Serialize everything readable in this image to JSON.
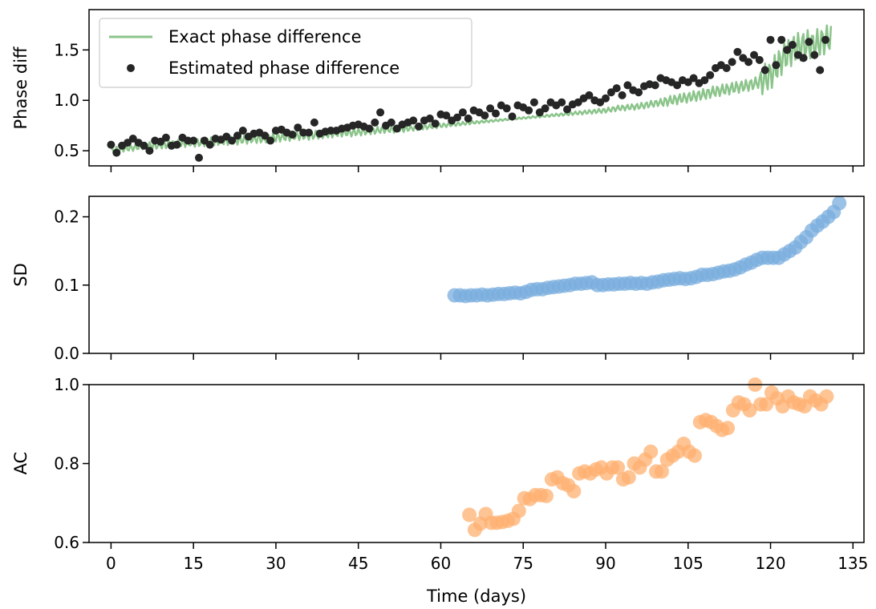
{
  "figure": {
    "background": "#ffffff"
  },
  "chart_data": [
    {
      "type": "line",
      "id": "phase",
      "ylabel": "Phase diff",
      "ylim": [
        0.35,
        1.9
      ],
      "yticks": [
        0.5,
        1.0,
        1.5
      ],
      "ytick_labels": [
        "0.5",
        "1.0",
        "1.5"
      ],
      "xlim": [
        -4,
        137
      ],
      "legend": {
        "placement": "top-left",
        "entries": [
          "Exact phase difference",
          "Estimated phase difference"
        ]
      },
      "series": [
        {
          "name": "Exact phase difference",
          "kind": "line",
          "color": "#8bc48a",
          "x": [
            0,
            2,
            4,
            6,
            8,
            10,
            12,
            14,
            16,
            18,
            20,
            22,
            24,
            26,
            28,
            30,
            32,
            34,
            36,
            38,
            40,
            42,
            44,
            46,
            48,
            50,
            52,
            54,
            56,
            58,
            60,
            62,
            64,
            66,
            68,
            70,
            72,
            74,
            76,
            78,
            80,
            82,
            84,
            86,
            88,
            90,
            92,
            94,
            96,
            98,
            100,
            102,
            104,
            106,
            108,
            110,
            112,
            114,
            116,
            118,
            120,
            122,
            124,
            126,
            128,
            130,
            131
          ],
          "y": [
            0.5,
            0.52,
            0.53,
            0.55,
            0.55,
            0.56,
            0.57,
            0.58,
            0.58,
            0.59,
            0.6,
            0.6,
            0.61,
            0.62,
            0.62,
            0.63,
            0.64,
            0.65,
            0.65,
            0.66,
            0.67,
            0.68,
            0.68,
            0.69,
            0.7,
            0.71,
            0.71,
            0.72,
            0.73,
            0.74,
            0.75,
            0.76,
            0.77,
            0.78,
            0.79,
            0.8,
            0.81,
            0.82,
            0.83,
            0.84,
            0.85,
            0.86,
            0.87,
            0.88,
            0.89,
            0.9,
            0.92,
            0.93,
            0.94,
            0.96,
            0.98,
            1.0,
            1.02,
            1.04,
            1.06,
            1.09,
            1.11,
            1.13,
            1.15,
            1.18,
            1.25,
            1.4,
            1.5,
            1.55,
            1.55,
            1.6,
            1.62
          ]
        },
        {
          "name": "Estimated phase difference",
          "kind": "scatter",
          "color": "#262626",
          "x": [
            0,
            1,
            2,
            3,
            4,
            5,
            6,
            7,
            8,
            9,
            10,
            11,
            12,
            13,
            14,
            15,
            16,
            17,
            18,
            19,
            20,
            21,
            22,
            23,
            24,
            25,
            26,
            27,
            28,
            29,
            30,
            31,
            32,
            33,
            34,
            35,
            36,
            37,
            38,
            39,
            40,
            41,
            42,
            43,
            44,
            45,
            46,
            47,
            48,
            49,
            50,
            51,
            52,
            53,
            54,
            55,
            56,
            57,
            58,
            59,
            60,
            61,
            62,
            63,
            64,
            65,
            66,
            67,
            68,
            69,
            70,
            71,
            72,
            73,
            74,
            75,
            76,
            77,
            78,
            79,
            80,
            81,
            82,
            83,
            84,
            85,
            86,
            87,
            88,
            89,
            90,
            91,
            92,
            93,
            94,
            95,
            96,
            97,
            98,
            99,
            100,
            101,
            102,
            103,
            104,
            105,
            106,
            107,
            108,
            109,
            110,
            111,
            112,
            113,
            114,
            115,
            116,
            117,
            118,
            119,
            120,
            121,
            122,
            123,
            124,
            125,
            126,
            127,
            128,
            129,
            130
          ],
          "y": [
            0.56,
            0.48,
            0.55,
            0.58,
            0.62,
            0.58,
            0.55,
            0.5,
            0.6,
            0.59,
            0.63,
            0.55,
            0.56,
            0.63,
            0.6,
            0.6,
            0.43,
            0.6,
            0.56,
            0.62,
            0.61,
            0.64,
            0.6,
            0.65,
            0.7,
            0.64,
            0.67,
            0.68,
            0.65,
            0.6,
            0.7,
            0.71,
            0.68,
            0.66,
            0.73,
            0.68,
            0.68,
            0.78,
            0.67,
            0.69,
            0.7,
            0.7,
            0.72,
            0.73,
            0.75,
            0.76,
            0.74,
            0.72,
            0.78,
            0.88,
            0.75,
            0.78,
            0.72,
            0.76,
            0.78,
            0.8,
            0.74,
            0.8,
            0.82,
            0.77,
            0.86,
            0.85,
            0.8,
            0.83,
            0.88,
            0.82,
            0.9,
            0.88,
            0.85,
            0.92,
            0.87,
            0.95,
            0.92,
            0.84,
            0.95,
            0.93,
            0.9,
            0.98,
            0.88,
            0.92,
            0.98,
            0.95,
            0.98,
            0.91,
            0.96,
            0.98,
            1.02,
            1.05,
            1.0,
            0.98,
            1.02,
            1.08,
            1.12,
            1.05,
            1.15,
            1.1,
            1.08,
            1.14,
            1.16,
            1.15,
            1.22,
            1.2,
            1.18,
            1.15,
            1.2,
            1.18,
            1.22,
            1.17,
            1.2,
            1.25,
            1.32,
            1.35,
            1.32,
            1.38,
            1.48,
            1.42,
            1.38,
            1.45,
            1.4,
            1.3,
            1.6,
            1.35,
            1.6,
            1.5,
            1.55,
            1.45,
            1.42,
            1.58,
            1.45,
            1.3,
            1.6
          ]
        }
      ]
    },
    {
      "type": "scatter",
      "id": "sd",
      "ylabel": "SD",
      "ylim": [
        0.0,
        0.23
      ],
      "yticks": [
        0.0,
        0.1,
        0.2
      ],
      "ytick_labels": [
        "0.0",
        "0.1",
        "0.2"
      ],
      "xlim": [
        -4,
        137
      ],
      "series": [
        {
          "kind": "scatter",
          "color": "#7aaede",
          "x": [
            62.5,
            63.5,
            64.5,
            65.5,
            66.5,
            67.5,
            68.5,
            69.5,
            70.5,
            71.5,
            72.5,
            73.5,
            74.5,
            75.5,
            76.5,
            77.5,
            78.5,
            79.5,
            80.5,
            81.5,
            82.5,
            83.5,
            84.5,
            85.5,
            86.5,
            87.5,
            88.5,
            89.5,
            90.5,
            91.5,
            92.5,
            93.5,
            94.5,
            95.5,
            96.5,
            97.5,
            98.5,
            99.5,
            100.5,
            101.5,
            102.5,
            103.5,
            104.5,
            105.5,
            106.5,
            107.5,
            108.5,
            109.5,
            110.5,
            111.5,
            112.5,
            113.5,
            114.5,
            115.5,
            116.5,
            117.5,
            118.5,
            119.5,
            120.5,
            121.5,
            122.5,
            123.5,
            124.5,
            125.5,
            126.5,
            127.5,
            128.5,
            129.5,
            130.5,
            131.5,
            132.5
          ],
          "y": [
            0.085,
            0.085,
            0.084,
            0.085,
            0.085,
            0.086,
            0.085,
            0.086,
            0.087,
            0.087,
            0.088,
            0.089,
            0.088,
            0.09,
            0.093,
            0.094,
            0.094,
            0.096,
            0.097,
            0.098,
            0.099,
            0.1,
            0.102,
            0.102,
            0.103,
            0.104,
            0.1,
            0.1,
            0.101,
            0.101,
            0.102,
            0.102,
            0.103,
            0.102,
            0.103,
            0.102,
            0.104,
            0.105,
            0.107,
            0.108,
            0.109,
            0.11,
            0.109,
            0.11,
            0.112,
            0.115,
            0.115,
            0.116,
            0.118,
            0.12,
            0.121,
            0.123,
            0.126,
            0.13,
            0.133,
            0.137,
            0.14,
            0.14,
            0.14,
            0.14,
            0.145,
            0.15,
            0.155,
            0.163,
            0.17,
            0.18,
            0.187,
            0.193,
            0.2,
            0.207,
            0.22
          ]
        }
      ]
    },
    {
      "type": "scatter",
      "id": "ac",
      "ylabel": "AC",
      "ylim": [
        0.6,
        1.0
      ],
      "yticks": [
        0.6,
        0.8,
        1.0
      ],
      "ytick_labels": [
        "0.6",
        "0.8",
        "1.0"
      ],
      "xlim": [
        -4,
        137
      ],
      "xlabel": "Time (days)",
      "xticks": [
        0,
        15,
        30,
        45,
        60,
        75,
        90,
        105,
        120,
        135
      ],
      "xtick_labels": [
        "0",
        "15",
        "30",
        "45",
        "60",
        "75",
        "90",
        "105",
        "120",
        "135"
      ],
      "series": [
        {
          "kind": "scatter",
          "color": "#ffb070",
          "x": [
            65.2,
            66.2,
            67.2,
            68.2,
            69.2,
            70.2,
            71.2,
            72.2,
            73.2,
            74.2,
            75.2,
            76.2,
            77.2,
            78.2,
            79.2,
            80.2,
            81.2,
            82.2,
            83.2,
            84.2,
            85.2,
            86.2,
            87.2,
            88.2,
            89.2,
            90.2,
            91.2,
            92.2,
            93.2,
            94.2,
            95.2,
            96.2,
            97.2,
            98.2,
            99.2,
            100.2,
            101.2,
            102.2,
            103.2,
            104.2,
            105.2,
            106.2,
            107.2,
            108.2,
            109.2,
            110.2,
            111.2,
            112.2,
            113.2,
            114.2,
            115.2,
            116.2,
            117.2,
            118.2,
            119.2,
            120.2,
            121.2,
            122.2,
            123.2,
            124.2,
            125.2,
            126.2,
            127.2,
            128.2,
            129.2,
            130.2
          ],
          "y": [
            0.67,
            0.632,
            0.648,
            0.672,
            0.65,
            0.65,
            0.652,
            0.655,
            0.66,
            0.68,
            0.712,
            0.71,
            0.72,
            0.72,
            0.718,
            0.76,
            0.765,
            0.75,
            0.745,
            0.73,
            0.775,
            0.78,
            0.775,
            0.785,
            0.79,
            0.775,
            0.79,
            0.79,
            0.76,
            0.765,
            0.8,
            0.79,
            0.81,
            0.83,
            0.78,
            0.78,
            0.81,
            0.82,
            0.83,
            0.85,
            0.83,
            0.82,
            0.905,
            0.91,
            0.905,
            0.895,
            0.885,
            0.89,
            0.935,
            0.955,
            0.95,
            0.935,
            1.0,
            0.95,
            0.95,
            0.98,
            0.965,
            0.945,
            0.97,
            0.955,
            0.95,
            0.945,
            0.97,
            0.96,
            0.95,
            0.97
          ]
        }
      ]
    }
  ]
}
